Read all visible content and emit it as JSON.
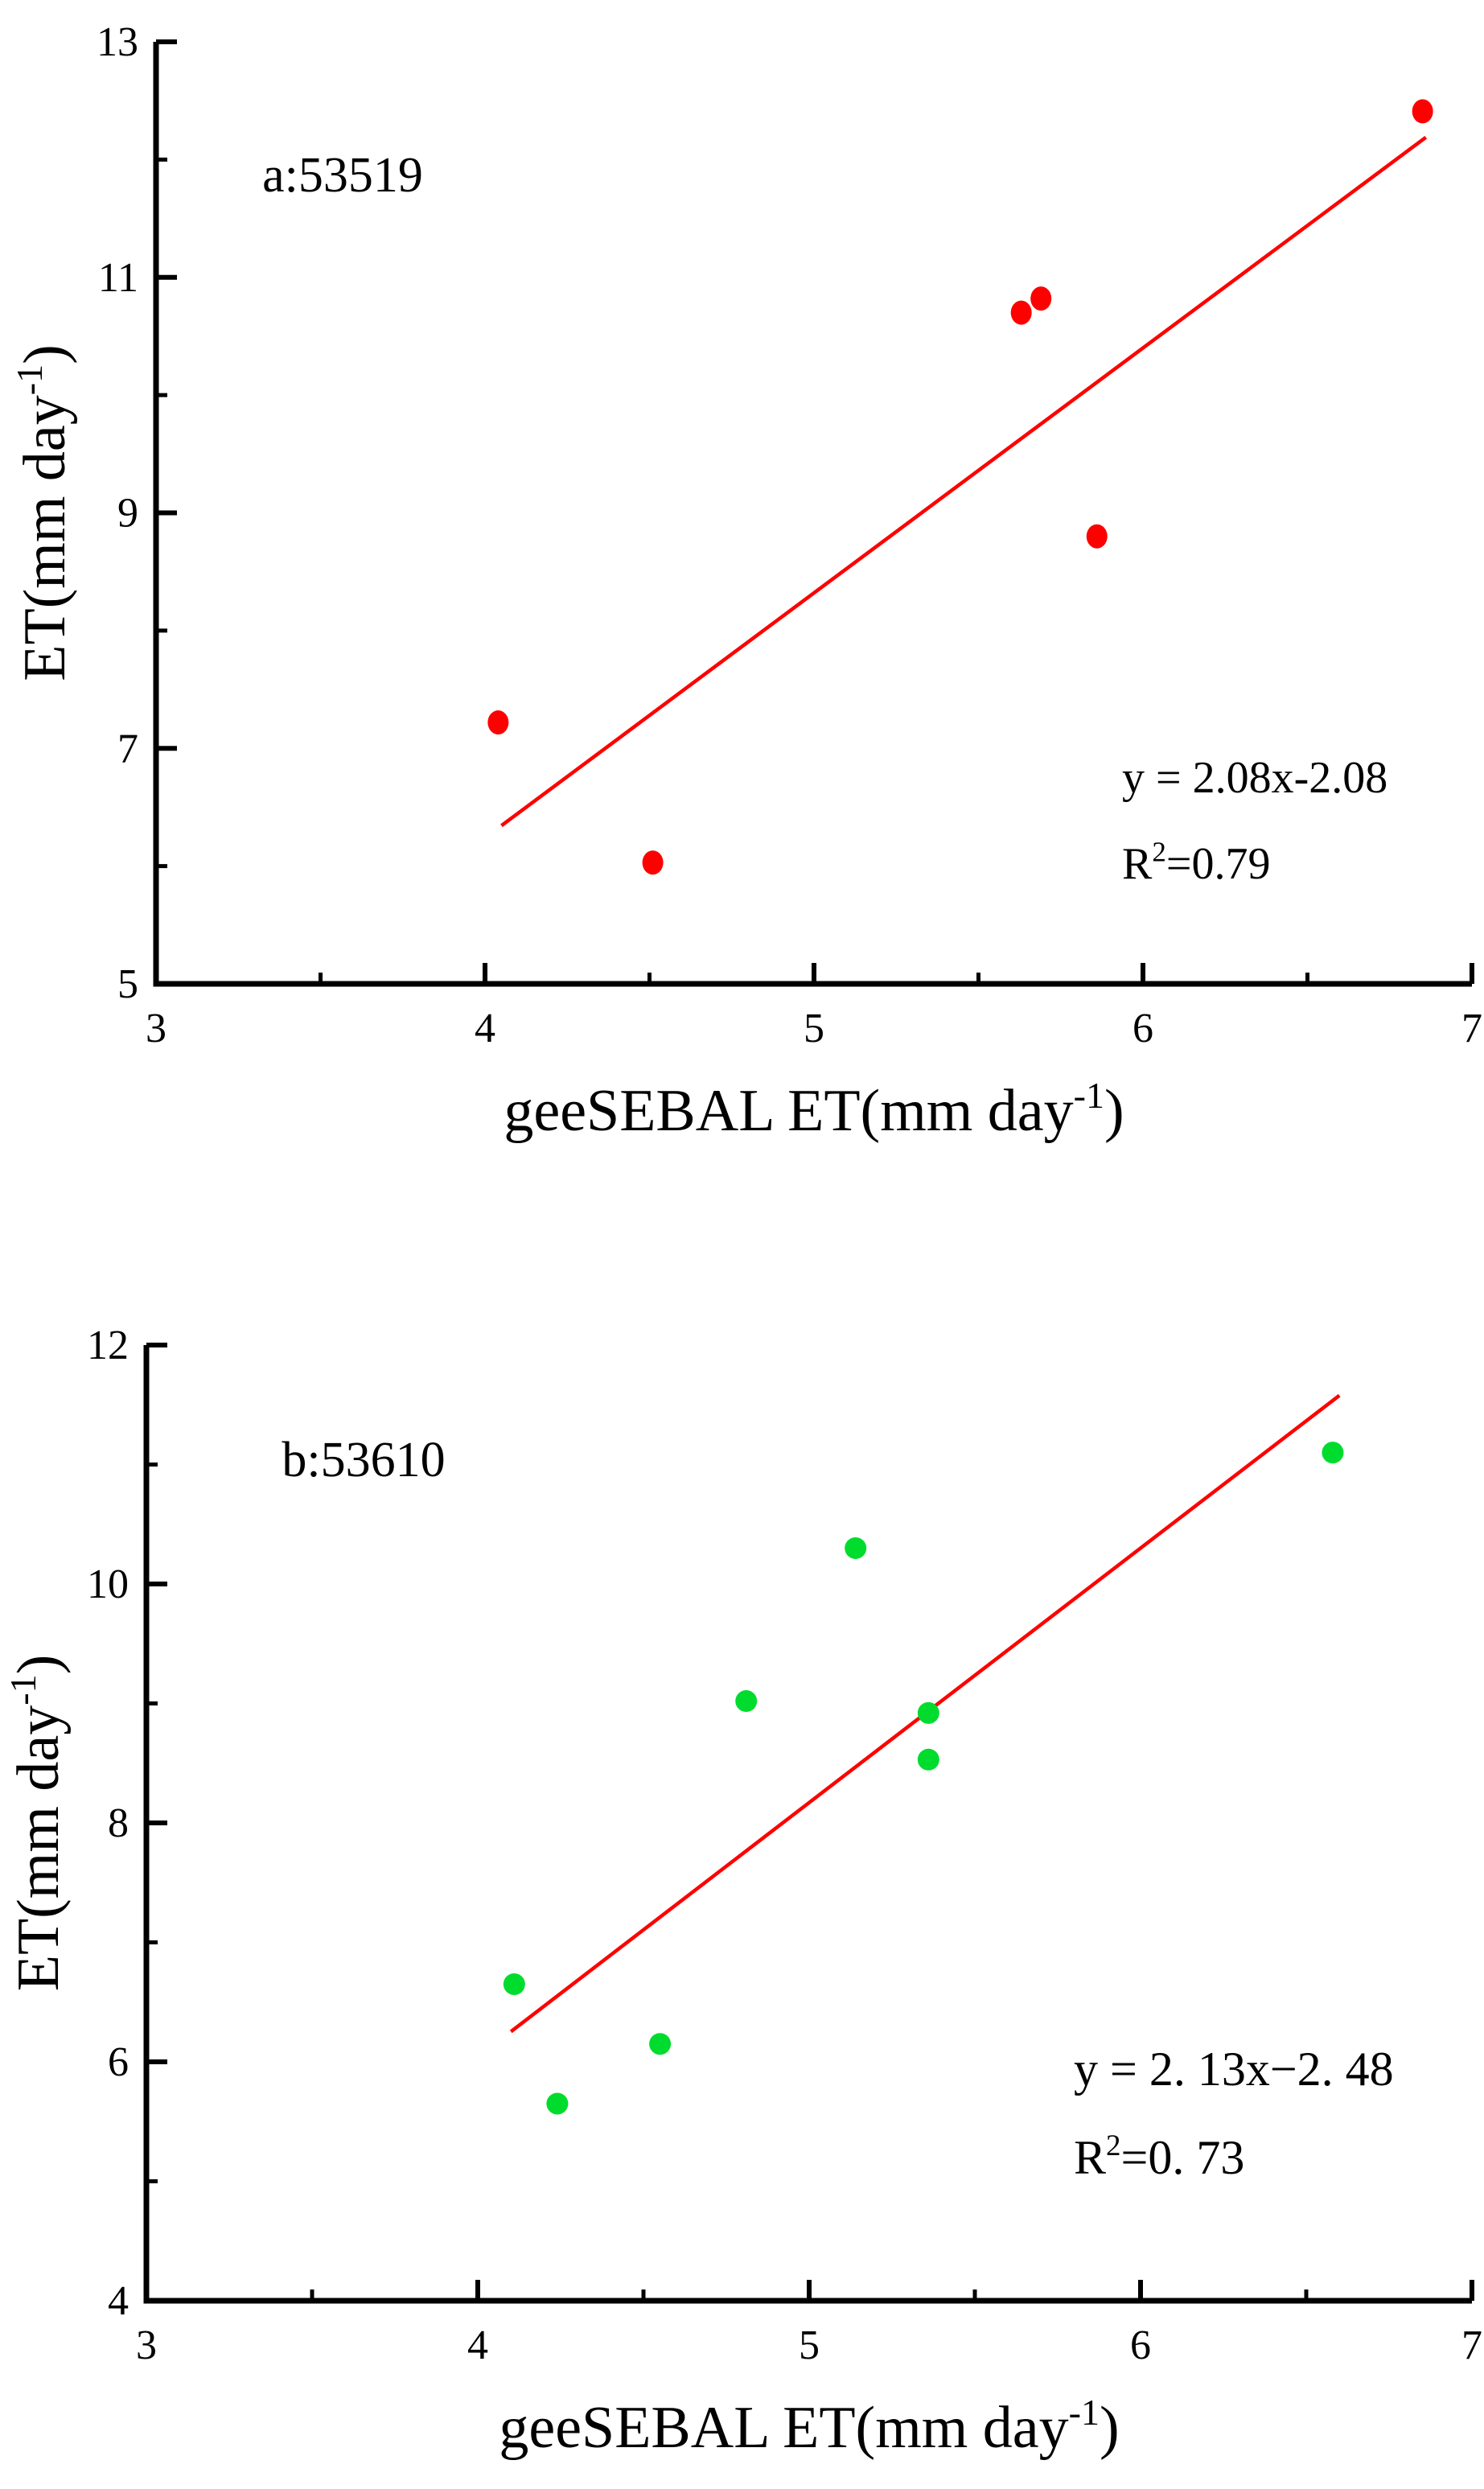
{
  "figure": {
    "background": "#ffffff",
    "axis_color": "#000000",
    "accent_red": "#ff0000",
    "accent_green": "#00dc2d"
  },
  "chart_data": [
    {
      "id": "a",
      "type": "scatter",
      "panel_label": "a:53519",
      "marker_color": "#ff0000",
      "marker_shape": "ellipse",
      "points": [
        [
          4.04,
          7.22
        ],
        [
          4.51,
          6.03
        ],
        [
          5.63,
          10.7
        ],
        [
          5.69,
          10.82
        ],
        [
          5.86,
          8.8
        ],
        [
          6.85,
          12.41
        ]
      ],
      "fit_line": {
        "slope": 2.08,
        "intercept": -2.08,
        "x_start": 4.05,
        "x_end": 6.86,
        "color": "#ff0000",
        "equation_text": "y = 2.08x-2.08",
        "r2_pre": "R",
        "r2_sup": "2",
        "r2_post": "=0.79"
      },
      "xlim": [
        3,
        7
      ],
      "ylim": [
        5,
        13
      ],
      "x_major_ticks": [
        3,
        4,
        5,
        6,
        7
      ],
      "x_minor_ticks": [
        3.5,
        4.5,
        5.5,
        6.5
      ],
      "y_major_ticks": [
        5,
        7,
        9,
        11,
        13
      ],
      "y_minor_ticks": [
        6,
        8,
        10,
        12
      ],
      "xlabel_pre": "geeSEBAL ET(mm day",
      "xlabel_sup": "-1",
      "xlabel_post": ")",
      "ylabel_pre": "ET(mm day",
      "ylabel_sup": "-1",
      "ylabel_post": ")",
      "grid": false,
      "legend": "none"
    },
    {
      "id": "b",
      "type": "scatter",
      "panel_label": "b:53610",
      "marker_color": "#00dc2d",
      "marker_shape": "circle",
      "points": [
        [
          4.11,
          6.65
        ],
        [
          4.24,
          5.65
        ],
        [
          4.55,
          6.15
        ],
        [
          4.81,
          9.02
        ],
        [
          5.14,
          10.3
        ],
        [
          5.36,
          8.92
        ],
        [
          5.36,
          8.53
        ],
        [
          6.58,
          11.1
        ]
      ],
      "fit_line": {
        "slope": 2.13,
        "intercept": -2.48,
        "x_start": 4.1,
        "x_end": 6.6,
        "color": "#ff0000",
        "equation_text": "y  =  2. 13x−2. 48",
        "r2_pre": "R",
        "r2_sup": "2",
        "r2_post": "=0. 73"
      },
      "xlim": [
        3,
        7
      ],
      "ylim": [
        4,
        12
      ],
      "x_major_ticks": [
        3,
        4,
        5,
        6,
        7
      ],
      "x_minor_ticks": [
        3.5,
        4.5,
        5.5,
        6.5
      ],
      "y_major_ticks": [
        4,
        6,
        8,
        10,
        12
      ],
      "y_minor_ticks": [
        5,
        7,
        9,
        11
      ],
      "xlabel_pre": "geeSEBAL ET(mm day",
      "xlabel_sup": "-1",
      "xlabel_post": ")",
      "ylabel_pre": "ET(mm day",
      "ylabel_sup": "-1",
      "ylabel_post": ")",
      "grid": false,
      "legend": "none"
    }
  ]
}
